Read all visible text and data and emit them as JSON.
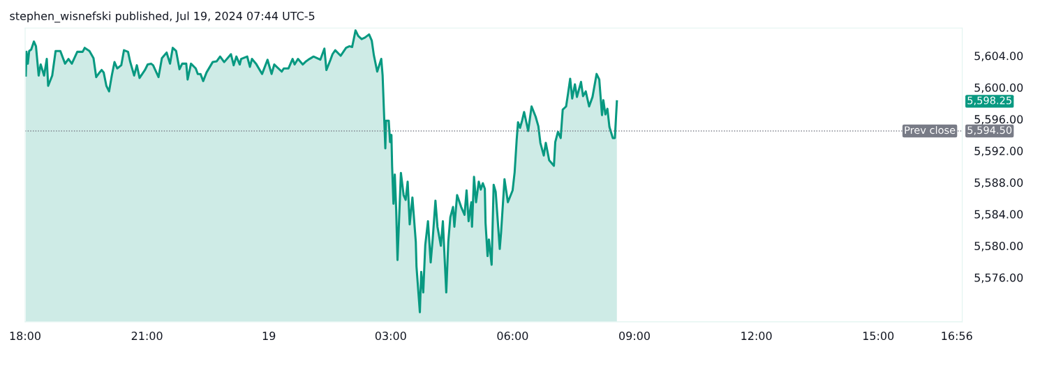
{
  "chart_data": {
    "type": "area",
    "title": "stephen_wisnefski published, Jul 19, 2024 07:44 UTC-5",
    "x": [
      "2024-07-18T18:01",
      "2024-07-18T18:02",
      "2024-07-18T18:04",
      "2024-07-18T18:06",
      "2024-07-18T18:09",
      "2024-07-18T18:13",
      "2024-07-18T18:16",
      "2024-07-18T18:20",
      "2024-07-18T18:23",
      "2024-07-18T18:28",
      "2024-07-18T18:32",
      "2024-07-18T18:34",
      "2024-07-18T18:40",
      "2024-07-18T18:45",
      "2024-07-18T18:52",
      "2024-07-18T18:59",
      "2024-07-18T19:04",
      "2024-07-18T19:09",
      "2024-07-18T19:17",
      "2024-07-18T19:25",
      "2024-07-18T19:28",
      "2024-07-18T19:35",
      "2024-07-18T19:41",
      "2024-07-18T19:45",
      "2024-07-18T19:50",
      "2024-07-18T19:53",
      "2024-07-18T19:56",
      "2024-07-18T20:00",
      "2024-07-18T20:04",
      "2024-07-18T20:08",
      "2024-07-18T20:12",
      "2024-07-18T20:16",
      "2024-07-18T20:22",
      "2024-07-18T20:26",
      "2024-07-18T20:32",
      "2024-07-18T20:35",
      "2024-07-18T20:41",
      "2024-07-18T20:45",
      "2024-07-18T20:49",
      "2024-07-18T20:57",
      "2024-07-18T21:01",
      "2024-07-18T21:06",
      "2024-07-18T21:09",
      "2024-07-18T21:17",
      "2024-07-18T21:22",
      "2024-07-18T21:29",
      "2024-07-18T21:34",
      "2024-07-18T21:38",
      "2024-07-18T21:43",
      "2024-07-18T21:48",
      "2024-07-18T21:52",
      "2024-07-18T21:58",
      "2024-07-18T22:00",
      "2024-07-18T22:05",
      "2024-07-18T22:12",
      "2024-07-18T22:15",
      "2024-07-18T22:19",
      "2024-07-18T22:23",
      "2024-07-18T22:28",
      "2024-07-18T22:37",
      "2024-07-18T22:43",
      "2024-07-18T22:48",
      "2024-07-18T22:54",
      "2024-07-18T23:01",
      "2024-07-18T23:04",
      "2024-07-18T23:08",
      "2024-07-18T23:12",
      "2024-07-18T23:17",
      "2024-07-18T23:19",
      "2024-07-18T23:28",
      "2024-07-18T23:32",
      "2024-07-18T23:35",
      "2024-07-18T23:41",
      "2024-07-18T23:50",
      "2024-07-18T23:58",
      "2024-07-19T00:04",
      "2024-07-19T00:08",
      "2024-07-19T00:19",
      "2024-07-19T00:22",
      "2024-07-19T00:29",
      "2024-07-19T00:35",
      "2024-07-19T00:38",
      "2024-07-19T00:43",
      "2024-07-19T00:50",
      "2024-07-19T00:55",
      "2024-07-19T01:00",
      "2024-07-19T01:06",
      "2024-07-19T01:16",
      "2024-07-19T01:22",
      "2024-07-19T01:25",
      "2024-07-19T01:31",
      "2024-07-19T01:34",
      "2024-07-19T01:38",
      "2024-07-19T01:46",
      "2024-07-19T01:54",
      "2024-07-19T01:59",
      "2024-07-19T02:03",
      "2024-07-19T02:08",
      "2024-07-19T02:12",
      "2024-07-19T02:17",
      "2024-07-19T02:22",
      "2024-07-19T02:28",
      "2024-07-19T02:32",
      "2024-07-19T02:35",
      "2024-07-19T02:40",
      "2024-07-19T02:46",
      "2024-07-19T02:48",
      "2024-07-19T02:52",
      "2024-07-19T02:53",
      "2024-07-19T02:57",
      "2024-07-19T02:59",
      "2024-07-19T03:01",
      "2024-07-19T03:02",
      "2024-07-19T03:04",
      "2024-07-19T03:06",
      "2024-07-19T03:08",
      "2024-07-19T03:10",
      "2024-07-19T03:15",
      "2024-07-19T03:19",
      "2024-07-19T03:22",
      "2024-07-19T03:25",
      "2024-07-19T03:28",
      "2024-07-19T03:32",
      "2024-07-19T03:37",
      "2024-07-19T03:38",
      "2024-07-19T03:43",
      "2024-07-19T03:45",
      "2024-07-19T03:48",
      "2024-07-19T03:51",
      "2024-07-19T03:55",
      "2024-07-19T03:59",
      "2024-07-19T04:02",
      "2024-07-19T04:06",
      "2024-07-19T04:09",
      "2024-07-19T04:14",
      "2024-07-19T04:17",
      "2024-07-19T04:22",
      "2024-07-19T04:25",
      "2024-07-19T04:28",
      "2024-07-19T04:32",
      "2024-07-19T04:34",
      "2024-07-19T04:38",
      "2024-07-19T04:44",
      "2024-07-19T04:49",
      "2024-07-19T04:52",
      "2024-07-19T04:55",
      "2024-07-19T04:59",
      "2024-07-19T05:00",
      "2024-07-19T05:03",
      "2024-07-19T05:06",
      "2024-07-19T05:10",
      "2024-07-19T05:13",
      "2024-07-19T05:16",
      "2024-07-19T05:19",
      "2024-07-19T05:20",
      "2024-07-19T05:23",
      "2024-07-19T05:25",
      "2024-07-19T05:29",
      "2024-07-19T05:32",
      "2024-07-19T05:35",
      "2024-07-19T05:41",
      "2024-07-19T05:43",
      "2024-07-19T05:48",
      "2024-07-19T05:53",
      "2024-07-19T06:00",
      "2024-07-19T06:03",
      "2024-07-19T06:06",
      "2024-07-19T06:08",
      "2024-07-19T06:11",
      "2024-07-19T06:14",
      "2024-07-19T06:17",
      "2024-07-19T06:23",
      "2024-07-19T06:28",
      "2024-07-19T06:34",
      "2024-07-19T06:38",
      "2024-07-19T06:41",
      "2024-07-19T06:46",
      "2024-07-19T06:49",
      "2024-07-19T06:54",
      "2024-07-19T07:01",
      "2024-07-19T07:03",
      "2024-07-19T07:07",
      "2024-07-19T07:11",
      "2024-07-19T07:14",
      "2024-07-19T07:19",
      "2024-07-19T07:22",
      "2024-07-19T07:25",
      "2024-07-19T07:28",
      "2024-07-19T07:32",
      "2024-07-19T07:35",
      "2024-07-19T07:41",
      "2024-07-19T07:44",
      "2024-07-19T07:48",
      "2024-07-19T07:53",
      "2024-07-19T07:58",
      "2024-07-19T08:04",
      "2024-07-19T08:08",
      "2024-07-19T08:12",
      "2024-07-19T08:14",
      "2024-07-19T08:17",
      "2024-07-19T08:20",
      "2024-07-19T08:23",
      "2024-07-19T08:28",
      "2024-07-19T08:31",
      "2024-07-19T08:34"
    ],
    "series": [
      {
        "color": "#089981",
        "values": [
          5601.5,
          5604.5,
          5603.0,
          5604.6,
          5604.8,
          5605.8,
          5605.2,
          5601.5,
          5602.9,
          5601.5,
          5603.6,
          5600.2,
          5601.5,
          5604.6,
          5604.6,
          5603.0,
          5603.6,
          5603.0,
          5604.5,
          5604.5,
          5605.0,
          5604.6,
          5603.7,
          5601.3,
          5601.9,
          5602.2,
          5601.9,
          5600.2,
          5599.5,
          5601.5,
          5603.2,
          5602.4,
          5602.8,
          5604.7,
          5604.5,
          5603.3,
          5601.5,
          5602.8,
          5601.2,
          5602.2,
          5602.9,
          5603.0,
          5602.8,
          5601.3,
          5603.7,
          5604.4,
          5603.0,
          5605.0,
          5604.6,
          5602.3,
          5603.0,
          5603.0,
          5601.0,
          5603.0,
          5602.4,
          5601.7,
          5601.7,
          5600.8,
          5601.9,
          5603.2,
          5603.3,
          5603.9,
          5603.2,
          5603.9,
          5604.2,
          5602.8,
          5603.9,
          5602.9,
          5603.6,
          5603.9,
          5602.6,
          5603.6,
          5603.0,
          5601.7,
          5603.5,
          5601.7,
          5602.9,
          5602.0,
          5602.4,
          5602.4,
          5603.6,
          5602.9,
          5603.6,
          5602.9,
          5603.3,
          5603.6,
          5603.9,
          5603.5,
          5604.9,
          5602.2,
          5603.5,
          5604.2,
          5604.7,
          5604.0,
          5605.0,
          5605.2,
          5605.1,
          5607.2,
          5606.5,
          5606.1,
          5606.3,
          5606.7,
          5605.9,
          5604.1,
          5602.0,
          5603.6,
          5601.5,
          5592.3,
          5595.8,
          5595.8,
          5593.1,
          5594.0,
          5590.1,
          5585.3,
          5589.0,
          5584.6,
          5578.2,
          5589.2,
          5586.4,
          5585.8,
          5588.1,
          5582.7,
          5586.1,
          5580.5,
          5577.4,
          5571.6,
          5576.7,
          5574.1,
          5580.1,
          5583.1,
          5577.9,
          5580.9,
          5585.7,
          5582.4,
          5580.0,
          5583.1,
          5574.1,
          5580.5,
          5583.6,
          5584.9,
          5582.4,
          5586.4,
          5584.9,
          5583.9,
          5587.0,
          5583.1,
          5585.5,
          5582.4,
          5588.7,
          5585.5,
          5588.1,
          5587.1,
          5587.9,
          5587.2,
          5582.9,
          5578.7,
          5580.8,
          5577.6,
          5587.7,
          5586.8,
          5579.6,
          5581.7,
          5588.4,
          5585.5,
          5587.0,
          5589.3,
          5593.4,
          5595.6,
          5594.9,
          5595.8,
          5596.9,
          5594.5,
          5597.6,
          5596.3,
          5595.1,
          5593.0,
          5591.4,
          5593.0,
          5590.8,
          5590.1,
          5593.1,
          5594.4,
          5593.6,
          5597.2,
          5597.6,
          5599.3,
          5601.1,
          5598.6,
          5600.4,
          5598.8,
          5600.7,
          5598.9,
          5599.5,
          5597.6,
          5598.8,
          5601.7,
          5601.0,
          5596.5,
          5598.4,
          5596.6,
          5597.3,
          5595.0,
          5593.6,
          5593.6,
          5598.25
        ]
      }
    ],
    "xlim": [
      "2024-07-18T18:00",
      "2024-07-19T17:04"
    ],
    "xticks": [
      {
        "value": "2024-07-18T18:00",
        "label": "18:00"
      },
      {
        "value": "2024-07-18T21:00",
        "label": "21:00"
      },
      {
        "value": "2024-07-19T00:00",
        "label": "19"
      },
      {
        "value": "2024-07-19T03:00",
        "label": "03:00"
      },
      {
        "value": "2024-07-19T06:00",
        "label": "06:00"
      },
      {
        "value": "2024-07-19T09:00",
        "label": "09:00"
      },
      {
        "value": "2024-07-19T12:00",
        "label": "12:00"
      },
      {
        "value": "2024-07-19T15:00",
        "label": "15:00"
      },
      {
        "value": "2024-07-19T16:56",
        "label": "16:56"
      }
    ],
    "ylim": [
      5570.4,
      5607.5
    ],
    "yticks": [
      {
        "value": 5576,
        "label": "5,576.00"
      },
      {
        "value": 5580,
        "label": "5,580.00"
      },
      {
        "value": 5584,
        "label": "5,584.00"
      },
      {
        "value": 5588,
        "label": "5,588.00"
      },
      {
        "value": 5592,
        "label": "5,592.00"
      },
      {
        "value": 5596,
        "label": "5,596.00"
      },
      {
        "value": 5600,
        "label": "5,600.00"
      },
      {
        "value": 5604,
        "label": "5,604.00"
      }
    ],
    "ref_lines": [
      {
        "axis": "y",
        "value": 5594.5,
        "label": "Prev close",
        "color": "#787b86",
        "line_style": "dotted"
      }
    ],
    "annotations": [
      "5,598.25",
      "5,594.50"
    ],
    "grid": false,
    "legend": false
  }
}
